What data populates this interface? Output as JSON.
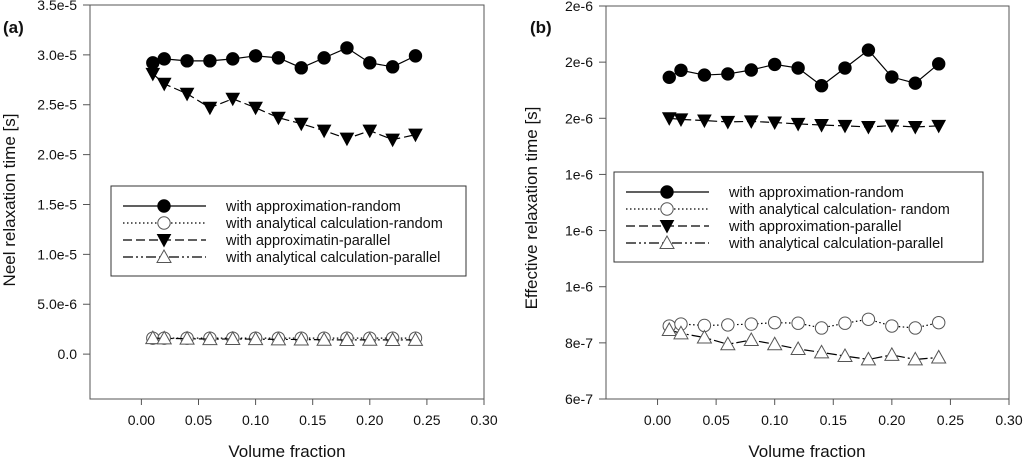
{
  "chart_data": [
    {
      "type": "line",
      "panel_label": "(a)",
      "xlabel": "Volume fraction",
      "ylabel": "Neel relaxation time [s]",
      "xlim": [
        -0.045,
        0.3
      ],
      "ylim": [
        -4.5e-06,
        3.5e-05
      ],
      "x_ticks": [
        0.0,
        0.05,
        0.1,
        0.15,
        0.2,
        0.25,
        0.3
      ],
      "x_tick_labels": [
        "0.00",
        "0.05",
        "0.10",
        "0.15",
        "0.20",
        "0.25",
        "0.30"
      ],
      "y_ticks": [
        0,
        5e-06,
        1e-05,
        1.5e-05,
        2e-05,
        2.5e-05,
        3e-05,
        3.5e-05
      ],
      "y_tick_labels": [
        "0.0",
        "5.0e-6",
        "1.0e-5",
        "1.5e-5",
        "2.0e-5",
        "2.5e-5",
        "3.0e-5",
        "3.5e-5"
      ],
      "grid": false,
      "legend_position": "center",
      "x": [
        0.01,
        0.02,
        0.04,
        0.06,
        0.08,
        0.1,
        0.12,
        0.14,
        0.16,
        0.18,
        0.2,
        0.22,
        0.24
      ],
      "series": [
        {
          "name": "with approximation-random",
          "marker": "filled-circle",
          "line": "solid",
          "values": [
            2.92e-05,
            2.96e-05,
            2.94e-05,
            2.94e-05,
            2.96e-05,
            2.99e-05,
            2.97e-05,
            2.87e-05,
            2.97e-05,
            3.07e-05,
            2.92e-05,
            2.88e-05,
            2.99e-05
          ]
        },
        {
          "name": "with analytical calculation-random",
          "marker": "open-circle",
          "line": "dotted",
          "values": [
            1.6e-06,
            1.6e-06,
            1.6e-06,
            1.6e-06,
            1.6e-06,
            1.6e-06,
            1.6e-06,
            1.6e-06,
            1.6e-06,
            1.6e-06,
            1.6e-06,
            1.6e-06,
            1.6e-06
          ]
        },
        {
          "name": "with approximatin-parallel",
          "marker": "filled-triangle-down",
          "line": "dashed",
          "values": [
            2.81e-05,
            2.71e-05,
            2.61e-05,
            2.47e-05,
            2.56e-05,
            2.47e-05,
            2.37e-05,
            2.31e-05,
            2.24e-05,
            2.16e-05,
            2.24e-05,
            2.15e-05,
            2.2e-05
          ]
        },
        {
          "name": "with analytical calculation-parallel",
          "marker": "open-triangle-up",
          "line": "dash-dot-dot",
          "values": [
            1.6e-06,
            1.58e-06,
            1.55e-06,
            1.5e-06,
            1.52e-06,
            1.5e-06,
            1.48e-06,
            1.46e-06,
            1.44e-06,
            1.42e-06,
            1.44e-06,
            1.42e-06,
            1.43e-06
          ]
        }
      ]
    },
    {
      "type": "line",
      "panel_label": "(b)",
      "xlabel": "Volume fraction",
      "ylabel": "Effective relaxation time [s]",
      "xlim": [
        -0.044,
        0.3
      ],
      "ylim": [
        6e-07,
        2e-06
      ],
      "x_ticks": [
        0.0,
        0.05,
        0.1,
        0.15,
        0.2,
        0.25,
        0.3
      ],
      "x_tick_labels": [
        "0.00",
        "0.05",
        "0.10",
        "0.15",
        "0.20",
        "0.25",
        "0.30"
      ],
      "y_ticks": [
        6e-07,
        8e-07,
        1e-06,
        1.2e-06,
        1.4e-06,
        1.6e-06,
        1.8e-06,
        2e-06
      ],
      "y_tick_labels": [
        "6e-7",
        "8e-7",
        "1e-6",
        "1e-6",
        "1e-6",
        "2e-6",
        "2e-6",
        "2e-6"
      ],
      "grid": false,
      "legend_position": "center",
      "x": [
        0.01,
        0.02,
        0.04,
        0.06,
        0.08,
        0.1,
        0.12,
        0.14,
        0.16,
        0.18,
        0.2,
        0.22,
        0.24
      ],
      "series": [
        {
          "name": "with approximation-random",
          "marker": "filled-circle",
          "line": "solid",
          "values": [
            1.746e-06,
            1.771e-06,
            1.754e-06,
            1.758e-06,
            1.772e-06,
            1.792e-06,
            1.779e-06,
            1.716e-06,
            1.779e-06,
            1.843e-06,
            1.747e-06,
            1.725e-06,
            1.794e-06
          ]
        },
        {
          "name": "with analytical calculation- random",
          "marker": "open-circle",
          "line": "dotted",
          "values": [
            8.6e-07,
            8.67e-07,
            8.62e-07,
            8.64e-07,
            8.67e-07,
            8.72e-07,
            8.7e-07,
            8.53e-07,
            8.7e-07,
            8.84e-07,
            8.6e-07,
            8.53e-07,
            8.72e-07
          ]
        },
        {
          "name": "with approximation-parallel",
          "marker": "filled-triangle-down",
          "line": "dashed",
          "values": [
            1.6e-06,
            1.596e-06,
            1.592e-06,
            1.587e-06,
            1.589e-06,
            1.585e-06,
            1.58e-06,
            1.576e-06,
            1.573e-06,
            1.569e-06,
            1.574e-06,
            1.569e-06,
            1.573e-06
          ]
        },
        {
          "name": "with analytical calculation-parallel",
          "marker": "open-triangle-up",
          "line": "dash-dot-dot",
          "values": [
            8.46e-07,
            8.34e-07,
            8.19e-07,
            7.95e-07,
            8.1e-07,
            7.95e-07,
            7.78e-07,
            7.66e-07,
            7.53e-07,
            7.41e-07,
            7.57e-07,
            7.41e-07,
            7.48e-07
          ]
        }
      ]
    }
  ]
}
